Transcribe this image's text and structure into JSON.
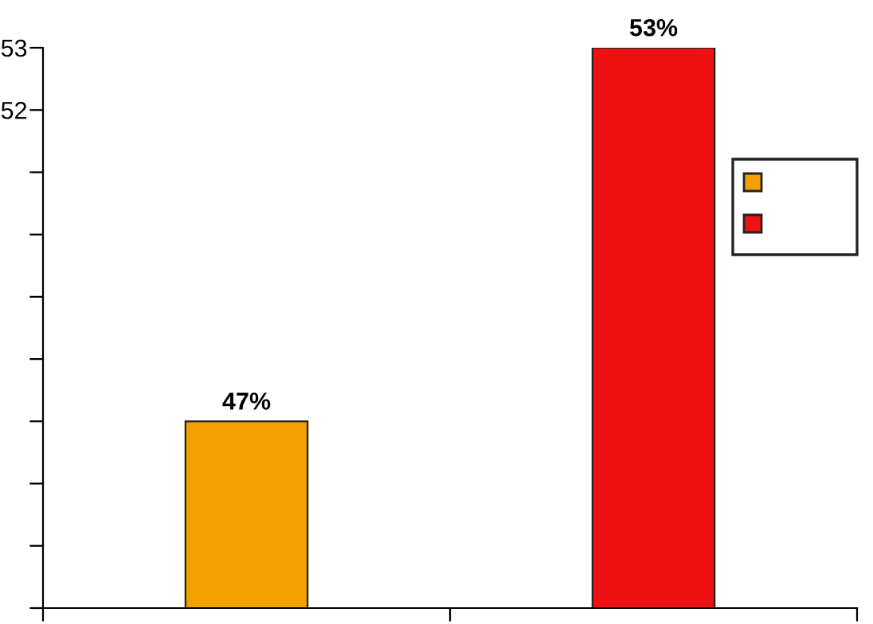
{
  "chart_data": {
    "type": "bar",
    "categories": [
      null,
      null
    ],
    "values": [
      47,
      53
    ],
    "colors": [
      "#f5a000",
      "#ee1111"
    ],
    "value_labels": [
      "47%",
      "53%"
    ],
    "ylim": [
      44,
      53
    ],
    "yticks": [
      {
        "value": 44,
        "label": null
      },
      {
        "value": 45,
        "label": null
      },
      {
        "value": 46,
        "label": null
      },
      {
        "value": 47,
        "label": null
      },
      {
        "value": 48,
        "label": null
      },
      {
        "value": 49,
        "label": null
      },
      {
        "value": 50,
        "label": null
      },
      {
        "value": 51,
        "label": null
      },
      52,
      53
    ],
    "grid": false
  }
}
